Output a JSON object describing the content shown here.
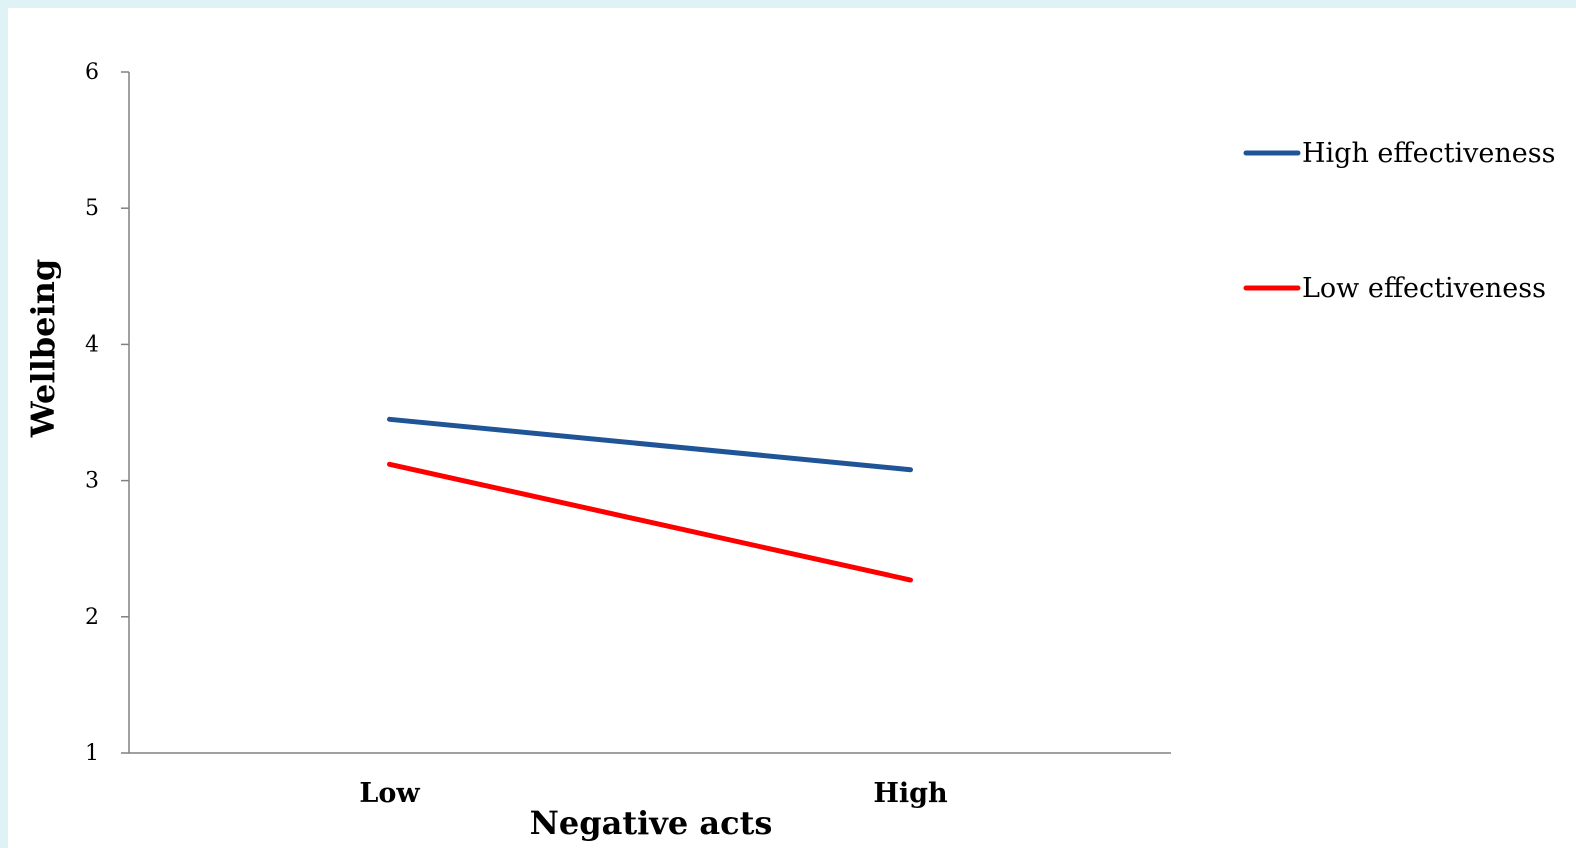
{
  "chart_data": {
    "type": "line",
    "title": "",
    "xlabel": "Negative acts",
    "ylabel": "Wellbeing",
    "categories": [
      "Low",
      "High"
    ],
    "ylim": [
      1,
      6
    ],
    "yticks": [
      "1",
      "2",
      "3",
      "4",
      "5",
      "6"
    ],
    "grid": false,
    "legend_position": "right",
    "series": [
      {
        "name": "High effectiveness",
        "values": [
          3.45,
          3.08
        ],
        "color": "#1f5597"
      },
      {
        "name": "Low effectiveness",
        "values": [
          3.12,
          2.27
        ],
        "color": "#ff0000"
      }
    ]
  }
}
